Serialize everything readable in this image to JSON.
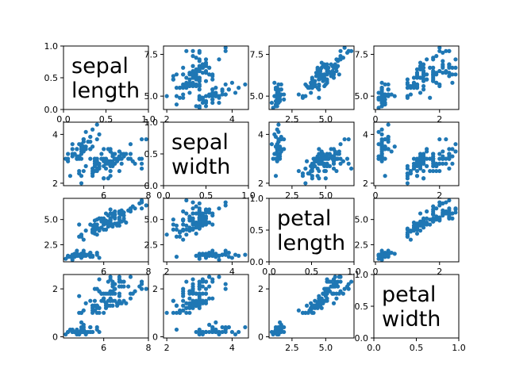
{
  "chart_data": {
    "type": "scatter",
    "layout": "4x4 scatter-plot matrix (pairplot); diagonal panels show variable names on blank 0–1 axes",
    "variables": [
      "sepal length",
      "sepal width",
      "petal length",
      "petal width"
    ],
    "diagonal_labels": [
      [
        "sepal",
        "length"
      ],
      [
        "sepal",
        "width"
      ],
      [
        "petal",
        "length"
      ],
      [
        "petal",
        "width"
      ]
    ],
    "point_color": "#1f77b4",
    "grid": false,
    "legend": "none",
    "variable_ranges": {
      "sepal length": [
        4.2,
        8.0
      ],
      "sepal width": [
        1.9,
        4.5
      ],
      "petal length": [
        0.8,
        7.1
      ],
      "petal width": [
        -0.05,
        2.6
      ]
    },
    "variable_ticks": {
      "sepal length": [
        {
          "v": 6,
          "t": "6"
        },
        {
          "v": 8,
          "t": "8"
        }
      ],
      "sepal length_y": [
        {
          "v": 5.0,
          "t": "5.0"
        },
        {
          "v": 7.5,
          "t": "7.5"
        }
      ],
      "sepal width": [
        {
          "v": 2,
          "t": "2"
        },
        {
          "v": 4,
          "t": "4"
        }
      ],
      "petal length": [
        {
          "v": 2.5,
          "t": "2.5"
        },
        {
          "v": 5.0,
          "t": "5.0"
        }
      ],
      "petal width": [
        {
          "v": 0,
          "t": "0"
        },
        {
          "v": 2,
          "t": "2"
        }
      ]
    },
    "diagonal_ticks": [
      {
        "v": 0.0,
        "t": "0.0"
      },
      {
        "v": 0.5,
        "t": "0.5"
      },
      {
        "v": 1.0,
        "t": "1.0"
      }
    ],
    "bottom_diagonal_ticks": [
      {
        "v": 0.0,
        "t": "0.0"
      },
      {
        "v": 0.5,
        "t": "0.5"
      },
      {
        "v": 1.0,
        "t": "1.0"
      }
    ],
    "bottom_right_ticks": [
      {
        "v": 0.0,
        "t": "0.0"
      },
      {
        "v": 0.5,
        "t": "0.5"
      },
      {
        "v": 1.0,
        "t": "1.0"
      }
    ],
    "samples": [
      [
        5.1,
        3.5,
        1.4,
        0.2
      ],
      [
        4.9,
        3.0,
        1.4,
        0.2
      ],
      [
        4.7,
        3.2,
        1.3,
        0.2
      ],
      [
        4.6,
        3.1,
        1.5,
        0.2
      ],
      [
        5.0,
        3.6,
        1.4,
        0.2
      ],
      [
        5.4,
        3.9,
        1.7,
        0.4
      ],
      [
        4.6,
        3.4,
        1.4,
        0.3
      ],
      [
        5.0,
        3.4,
        1.5,
        0.2
      ],
      [
        4.4,
        2.9,
        1.4,
        0.2
      ],
      [
        4.9,
        3.1,
        1.5,
        0.1
      ],
      [
        5.4,
        3.7,
        1.5,
        0.2
      ],
      [
        4.8,
        3.4,
        1.6,
        0.2
      ],
      [
        4.8,
        3.0,
        1.4,
        0.1
      ],
      [
        4.3,
        3.0,
        1.1,
        0.1
      ],
      [
        5.8,
        4.0,
        1.2,
        0.2
      ],
      [
        5.7,
        4.4,
        1.5,
        0.4
      ],
      [
        5.4,
        3.9,
        1.3,
        0.4
      ],
      [
        5.1,
        3.5,
        1.4,
        0.3
      ],
      [
        5.7,
        3.8,
        1.7,
        0.3
      ],
      [
        5.1,
        3.8,
        1.5,
        0.3
      ],
      [
        5.4,
        3.4,
        1.7,
        0.2
      ],
      [
        5.1,
        3.7,
        1.5,
        0.4
      ],
      [
        4.6,
        3.6,
        1.0,
        0.2
      ],
      [
        5.1,
        3.3,
        1.7,
        0.5
      ],
      [
        4.8,
        3.4,
        1.9,
        0.2
      ],
      [
        5.0,
        3.0,
        1.6,
        0.2
      ],
      [
        5.0,
        3.4,
        1.6,
        0.4
      ],
      [
        5.2,
        3.5,
        1.5,
        0.2
      ],
      [
        5.2,
        3.4,
        1.4,
        0.2
      ],
      [
        4.7,
        3.2,
        1.6,
        0.2
      ],
      [
        4.8,
        3.1,
        1.6,
        0.2
      ],
      [
        5.4,
        3.4,
        1.5,
        0.4
      ],
      [
        5.2,
        4.1,
        1.5,
        0.1
      ],
      [
        5.5,
        4.2,
        1.4,
        0.2
      ],
      [
        4.9,
        3.1,
        1.5,
        0.2
      ],
      [
        5.0,
        3.2,
        1.2,
        0.2
      ],
      [
        5.5,
        3.5,
        1.3,
        0.2
      ],
      [
        4.9,
        3.6,
        1.4,
        0.1
      ],
      [
        4.4,
        3.0,
        1.3,
        0.2
      ],
      [
        5.1,
        3.4,
        1.5,
        0.2
      ],
      [
        5.0,
        3.5,
        1.3,
        0.3
      ],
      [
        4.5,
        2.3,
        1.3,
        0.3
      ],
      [
        4.4,
        3.2,
        1.3,
        0.2
      ],
      [
        5.0,
        3.5,
        1.6,
        0.6
      ],
      [
        5.1,
        3.8,
        1.9,
        0.4
      ],
      [
        4.8,
        3.0,
        1.4,
        0.3
      ],
      [
        5.1,
        3.8,
        1.6,
        0.2
      ],
      [
        4.6,
        3.2,
        1.4,
        0.2
      ],
      [
        5.3,
        3.7,
        1.5,
        0.2
      ],
      [
        5.0,
        3.3,
        1.4,
        0.2
      ],
      [
        7.0,
        3.2,
        4.7,
        1.4
      ],
      [
        6.4,
        3.2,
        4.5,
        1.5
      ],
      [
        6.9,
        3.1,
        4.9,
        1.5
      ],
      [
        5.5,
        2.3,
        4.0,
        1.3
      ],
      [
        6.5,
        2.8,
        4.6,
        1.5
      ],
      [
        5.7,
        2.8,
        4.5,
        1.3
      ],
      [
        6.3,
        3.3,
        4.7,
        1.6
      ],
      [
        4.9,
        2.4,
        3.3,
        1.0
      ],
      [
        6.6,
        2.9,
        4.6,
        1.3
      ],
      [
        5.2,
        2.7,
        3.9,
        1.4
      ],
      [
        5.0,
        2.0,
        3.5,
        1.0
      ],
      [
        5.9,
        3.0,
        4.2,
        1.5
      ],
      [
        6.0,
        2.2,
        4.0,
        1.0
      ],
      [
        6.1,
        2.9,
        4.7,
        1.4
      ],
      [
        5.6,
        2.9,
        3.6,
        1.3
      ],
      [
        6.7,
        3.1,
        4.4,
        1.4
      ],
      [
        5.6,
        3.0,
        4.5,
        1.5
      ],
      [
        5.8,
        2.7,
        4.1,
        1.0
      ],
      [
        6.2,
        2.2,
        4.5,
        1.5
      ],
      [
        5.6,
        2.5,
        3.9,
        1.1
      ],
      [
        5.9,
        3.2,
        4.8,
        1.8
      ],
      [
        6.1,
        2.8,
        4.0,
        1.3
      ],
      [
        6.3,
        2.5,
        4.9,
        1.5
      ],
      [
        6.1,
        2.8,
        4.7,
        1.2
      ],
      [
        6.4,
        2.9,
        4.3,
        1.3
      ],
      [
        6.6,
        3.0,
        4.4,
        1.4
      ],
      [
        6.8,
        2.8,
        4.8,
        1.4
      ],
      [
        6.7,
        3.0,
        5.0,
        1.7
      ],
      [
        6.0,
        2.9,
        4.5,
        1.5
      ],
      [
        5.7,
        2.6,
        3.5,
        1.0
      ],
      [
        5.5,
        2.4,
        3.8,
        1.1
      ],
      [
        5.5,
        2.4,
        3.7,
        1.0
      ],
      [
        5.8,
        2.7,
        3.9,
        1.2
      ],
      [
        6.0,
        2.7,
        5.1,
        1.6
      ],
      [
        5.4,
        3.0,
        4.5,
        1.5
      ],
      [
        6.0,
        3.4,
        4.5,
        1.6
      ],
      [
        6.7,
        3.1,
        4.7,
        1.5
      ],
      [
        6.3,
        2.3,
        4.4,
        1.3
      ],
      [
        5.6,
        3.0,
        4.1,
        1.3
      ],
      [
        5.5,
        2.5,
        4.0,
        1.3
      ],
      [
        5.5,
        2.6,
        4.4,
        1.2
      ],
      [
        6.1,
        3.0,
        4.6,
        1.4
      ],
      [
        5.8,
        2.6,
        4.0,
        1.2
      ],
      [
        5.0,
        2.3,
        3.3,
        1.0
      ],
      [
        5.6,
        2.7,
        4.2,
        1.3
      ],
      [
        5.7,
        3.0,
        4.2,
        1.2
      ],
      [
        5.7,
        2.9,
        4.2,
        1.3
      ],
      [
        6.2,
        2.9,
        4.3,
        1.3
      ],
      [
        5.1,
        2.5,
        3.0,
        1.1
      ],
      [
        5.7,
        2.8,
        4.1,
        1.3
      ],
      [
        6.3,
        3.3,
        6.0,
        2.5
      ],
      [
        5.8,
        2.7,
        5.1,
        1.9
      ],
      [
        7.1,
        3.0,
        5.9,
        2.1
      ],
      [
        6.3,
        2.9,
        5.6,
        1.8
      ],
      [
        6.5,
        3.0,
        5.8,
        2.2
      ],
      [
        7.6,
        3.0,
        6.6,
        2.1
      ],
      [
        4.9,
        2.5,
        4.5,
        1.7
      ],
      [
        7.3,
        2.9,
        6.3,
        1.8
      ],
      [
        6.7,
        2.5,
        5.8,
        1.8
      ],
      [
        7.2,
        3.6,
        6.1,
        2.5
      ],
      [
        6.5,
        3.2,
        5.1,
        2.0
      ],
      [
        6.4,
        2.7,
        5.3,
        1.9
      ],
      [
        6.8,
        3.0,
        5.5,
        2.1
      ],
      [
        5.7,
        2.5,
        5.0,
        2.0
      ],
      [
        5.8,
        2.8,
        5.1,
        2.4
      ],
      [
        6.4,
        3.2,
        5.3,
        2.3
      ],
      [
        6.5,
        3.0,
        5.5,
        1.8
      ],
      [
        7.7,
        3.8,
        6.7,
        2.2
      ],
      [
        7.7,
        2.6,
        6.9,
        2.3
      ],
      [
        6.0,
        2.2,
        5.0,
        1.5
      ],
      [
        6.9,
        3.2,
        5.7,
        2.3
      ],
      [
        5.6,
        2.8,
        4.9,
        2.0
      ],
      [
        7.7,
        2.8,
        6.7,
        2.0
      ],
      [
        6.3,
        2.7,
        4.9,
        1.8
      ],
      [
        6.7,
        3.3,
        5.7,
        2.1
      ],
      [
        7.2,
        3.2,
        6.0,
        1.8
      ],
      [
        6.2,
        2.8,
        4.8,
        1.8
      ],
      [
        6.1,
        3.0,
        4.9,
        1.8
      ],
      [
        6.4,
        2.8,
        5.6,
        2.1
      ],
      [
        7.2,
        3.0,
        5.8,
        1.6
      ],
      [
        7.4,
        2.8,
        6.1,
        1.9
      ],
      [
        7.9,
        3.8,
        6.4,
        2.0
      ],
      [
        6.4,
        2.8,
        5.6,
        2.2
      ],
      [
        6.3,
        2.8,
        5.1,
        1.5
      ],
      [
        6.1,
        2.6,
        5.6,
        1.4
      ],
      [
        7.7,
        3.0,
        6.1,
        2.3
      ],
      [
        6.3,
        3.4,
        5.6,
        2.4
      ],
      [
        6.4,
        3.1,
        5.5,
        1.8
      ],
      [
        6.0,
        3.0,
        4.8,
        1.8
      ],
      [
        6.9,
        3.1,
        5.4,
        2.1
      ],
      [
        6.7,
        3.1,
        5.6,
        2.4
      ],
      [
        6.9,
        3.1,
        5.1,
        2.3
      ],
      [
        5.8,
        2.7,
        5.1,
        1.9
      ],
      [
        6.8,
        3.2,
        5.9,
        2.3
      ],
      [
        6.7,
        3.3,
        5.7,
        2.5
      ],
      [
        6.7,
        3.0,
        5.2,
        2.3
      ],
      [
        6.3,
        2.5,
        5.0,
        1.9
      ],
      [
        6.5,
        3.0,
        5.2,
        2.0
      ],
      [
        6.2,
        3.4,
        5.4,
        2.3
      ],
      [
        5.9,
        3.0,
        5.1,
        1.8
      ]
    ]
  }
}
